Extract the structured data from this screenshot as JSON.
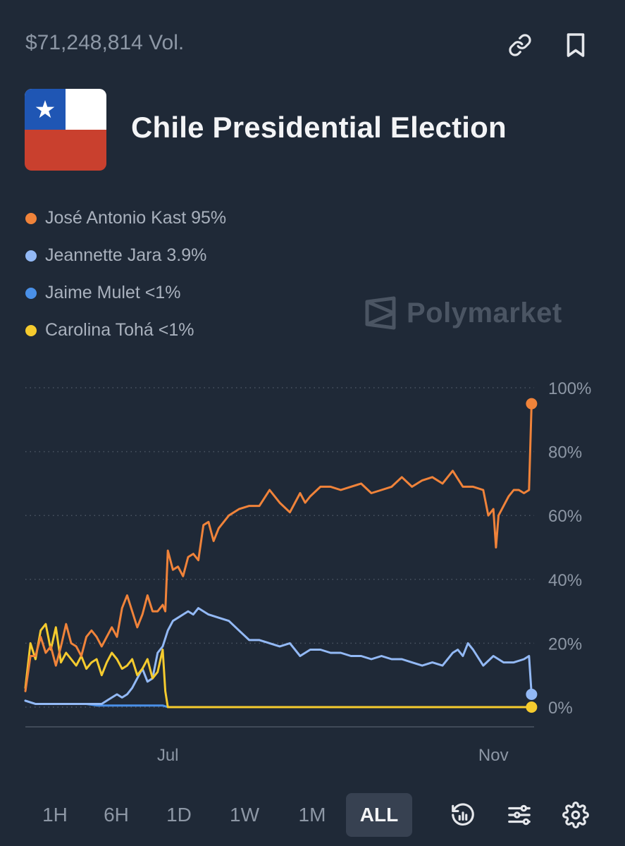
{
  "header": {
    "volume": "$71,248,814 Vol.",
    "title": "Chile Presidential Election"
  },
  "legend": [
    {
      "label": "José Antonio Kast 95%",
      "color": "#f0833a"
    },
    {
      "label": "Jeannette Jara 3.9%",
      "color": "#93b9f5"
    },
    {
      "label": "Jaime Mulet <1%",
      "color": "#4a90e8"
    },
    {
      "label": "Carolina Tohá <1%",
      "color": "#f5cb2e"
    }
  ],
  "watermark": "Polymarket",
  "timeframes": [
    "1H",
    "6H",
    "1D",
    "1W",
    "1M",
    "ALL"
  ],
  "active_timeframe": "ALL",
  "chart_data": {
    "type": "line",
    "title": "Chile Presidential Election",
    "x_ticks": [
      "Jul",
      "Nov"
    ],
    "y_ticks": [
      "100%",
      "80%",
      "60%",
      "40%",
      "20%",
      "0%"
    ],
    "ylim": [
      0,
      100
    ],
    "x_range": [
      0,
      100
    ],
    "x_tick_positions": [
      28,
      92
    ],
    "series": [
      {
        "name": "José Antonio Kast",
        "color": "#f0833a",
        "x": [
          0,
          1,
          2,
          3,
          4,
          5,
          6,
          7,
          8,
          9,
          10,
          11,
          12,
          13,
          14,
          15,
          16,
          17,
          18,
          19,
          20,
          21,
          22,
          23,
          24,
          25,
          26,
          27,
          27.5,
          28,
          29,
          30,
          31,
          32,
          33,
          34,
          35,
          36,
          37,
          38,
          40,
          42,
          44,
          46,
          48,
          50,
          52,
          54,
          55,
          56,
          58,
          60,
          62,
          64,
          66,
          68,
          70,
          72,
          74,
          76,
          78,
          80,
          82,
          84,
          86,
          88,
          90,
          91,
          92,
          92.5,
          93,
          94,
          95,
          96,
          97,
          98,
          99,
          99.5
        ],
        "values": [
          5,
          16,
          16,
          22,
          17,
          19,
          13,
          19,
          26,
          20,
          19,
          16,
          22,
          24,
          22,
          19,
          22,
          25,
          22,
          31,
          35,
          30,
          25,
          29,
          35,
          30,
          30,
          32,
          30,
          49,
          43,
          44,
          41,
          47,
          48,
          46,
          57,
          58,
          52,
          56,
          60,
          62,
          63,
          63,
          68,
          64,
          61,
          67,
          64,
          66,
          69,
          69,
          68,
          69,
          70,
          67,
          68,
          69,
          72,
          69,
          71,
          72,
          70,
          74,
          69,
          69,
          68,
          60,
          62,
          50,
          60,
          63,
          66,
          68,
          68,
          67,
          68,
          95
        ]
      },
      {
        "name": "Jeannette Jara",
        "color": "#93b9f5",
        "x": [
          0,
          2,
          4,
          6,
          8,
          10,
          12,
          14,
          15,
          16,
          17,
          18,
          19,
          20,
          21,
          22,
          23,
          24,
          25,
          26,
          27,
          28,
          29,
          30,
          31,
          32,
          33,
          34,
          35,
          36,
          38,
          40,
          42,
          44,
          46,
          48,
          50,
          52,
          54,
          56,
          58,
          60,
          62,
          64,
          66,
          68,
          70,
          72,
          74,
          76,
          78,
          80,
          82,
          83,
          84,
          85,
          86,
          87,
          88,
          90,
          92,
          94,
          96,
          98,
          99,
          99.5
        ],
        "values": [
          2,
          1,
          1,
          1,
          1,
          1,
          1,
          1,
          1,
          2,
          3,
          4,
          3,
          4,
          6,
          9,
          12,
          8,
          9,
          17,
          19,
          24,
          27,
          28,
          29,
          30,
          29,
          31,
          30,
          29,
          28,
          27,
          24,
          21,
          21,
          20,
          19,
          20,
          16,
          18,
          18,
          17,
          17,
          16,
          16,
          15,
          16,
          15,
          15,
          14,
          13,
          14,
          13,
          15,
          17,
          18,
          16,
          20,
          18,
          13,
          16,
          14,
          14,
          15,
          16,
          4
        ]
      },
      {
        "name": "Jaime Mulet",
        "color": "#4a90e8",
        "x": [
          0,
          2,
          4,
          6,
          8,
          10,
          12,
          14,
          16,
          18,
          20,
          22,
          24,
          26,
          27,
          28,
          29,
          30,
          40,
          50,
          60,
          70,
          80,
          90,
          99.5
        ],
        "values": [
          2,
          1,
          1,
          1,
          1,
          1,
          1,
          0.5,
          0.5,
          0.5,
          0.5,
          0.5,
          0.5,
          0.5,
          0.5,
          0,
          0,
          0,
          0,
          0,
          0,
          0,
          0,
          0,
          0
        ]
      },
      {
        "name": "Carolina Tohá",
        "color": "#f5cb2e",
        "x": [
          0,
          1,
          2,
          3,
          4,
          5,
          6,
          7,
          8,
          9,
          10,
          11,
          12,
          13,
          14,
          15,
          16,
          17,
          18,
          19,
          20,
          21,
          22,
          23,
          24,
          25,
          26,
          27,
          27.5,
          28,
          30,
          40,
          50,
          60,
          70,
          80,
          90,
          99.5
        ],
        "values": [
          6,
          20,
          15,
          24,
          26,
          18,
          25,
          14,
          17,
          15,
          13,
          16,
          12,
          14,
          15,
          10,
          14,
          17,
          15,
          12,
          13,
          15,
          10,
          12,
          15,
          9,
          11,
          18,
          5,
          0,
          0,
          0,
          0,
          0,
          0,
          0,
          0,
          0
        ]
      }
    ]
  }
}
